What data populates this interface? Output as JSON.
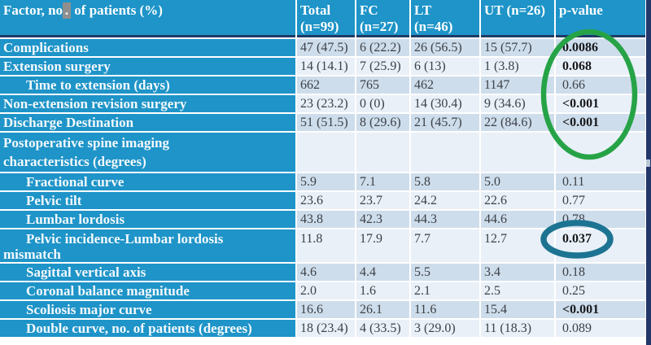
{
  "header": {
    "factor": {
      "prefix": "Factor, no",
      "selected": ".",
      "suffix": " of patients (%)"
    }
  },
  "table": {
    "columns": [
      "Total\n(n=99)",
      "FC\n(n=27)",
      "LT\n(n=46)",
      "UT (n=26)",
      "p-value"
    ],
    "rows": [
      {
        "factor": "Complications",
        "indent": false,
        "h": "single",
        "values": [
          "47 (47.5)",
          "6 (22.2)",
          "26 (56.5)",
          "15 (57.7)"
        ],
        "p": "0.0086",
        "p_bold": true
      },
      {
        "factor": "Extension surgery",
        "indent": false,
        "h": "single",
        "values": [
          "14 (14.1)",
          "7 (25.9)",
          "6 (13)",
          "1 (3.8)"
        ],
        "p": "0.068",
        "p_bold": true
      },
      {
        "factor": "Time to extension (days)",
        "indent": true,
        "h": "single",
        "values": [
          "662",
          "765",
          "462",
          "1147"
        ],
        "p": "0.66",
        "p_bold": false
      },
      {
        "factor": "Non-extension revision surgery",
        "indent": false,
        "h": "single",
        "values": [
          "23 (23.2)",
          "0 (0)",
          "14 (30.4)",
          "9 (34.6)"
        ],
        "p": "<0.001",
        "p_bold": true
      },
      {
        "factor": "Discharge Destination",
        "indent": false,
        "h": "single",
        "values": [
          "51 (51.5)",
          "8 (29.6)",
          "21 (45.7)",
          "22 (84.6)"
        ],
        "p": "<0.001",
        "p_bold": true
      },
      {
        "factor": "Postoperative spine imaging\ncharacteristics (degrees)",
        "indent": false,
        "h": "tall",
        "values": [
          "",
          "",
          "",
          ""
        ],
        "p": "",
        "p_bold": false
      },
      {
        "factor": "Fractional curve",
        "indent": true,
        "h": "single",
        "values": [
          "5.9",
          "7.1",
          "5.8",
          "5.0"
        ],
        "p": "0.11",
        "p_bold": false
      },
      {
        "factor": "Pelvic tilt",
        "indent": true,
        "h": "single",
        "values": [
          "23.6",
          "23.7",
          "24.2",
          "22.6"
        ],
        "p": "0.77",
        "p_bold": false
      },
      {
        "factor": "Lumbar lordosis",
        "indent": true,
        "h": "single",
        "values": [
          "43.8",
          "42.3",
          "44.3",
          "44.6"
        ],
        "p": "0.78",
        "p_bold": false
      },
      {
        "factor": "Pelvic incidence-Lumbar lordosis\nmismatch",
        "indent": true,
        "h": "med",
        "values": [
          "11.8",
          "17.9",
          "7.7",
          "12.7"
        ],
        "p": "0.037",
        "p_bold": true
      },
      {
        "factor": "Sagittal vertical axis",
        "indent": true,
        "h": "single",
        "values": [
          "4.6",
          "4.4",
          "5.5",
          "3.4"
        ],
        "p": "0.18",
        "p_bold": false
      },
      {
        "factor": "Coronal balance magnitude",
        "indent": true,
        "h": "single",
        "values": [
          "2.0",
          "1.6",
          "2.1",
          "2.5"
        ],
        "p": "0.25",
        "p_bold": false
      },
      {
        "factor": "Scoliosis major curve",
        "indent": true,
        "h": "single",
        "values": [
          "16.6",
          "26.1",
          "11.6",
          "15.4"
        ],
        "p": "<0.001",
        "p_bold": true
      },
      {
        "factor": "Double curve, no. of patients (degrees)",
        "indent": true,
        "h": "single",
        "values": [
          "18 (23.4)",
          "4 (33.5)",
          "3 (29.0)",
          "11 (18.3)"
        ],
        "p": "0.089",
        "p_bold": false
      }
    ]
  },
  "annotations": {
    "green_ellipse_circles": [
      "0.0086",
      "0.068",
      "0.66",
      "<0.001",
      "<0.001"
    ],
    "teal_ellipse_circles": "0.037"
  },
  "colors": {
    "header_blue": "#1E94C8",
    "row_dark": "#CEDDEB",
    "row_light": "#E9F0F8",
    "navy_border": "#1E3A66",
    "right_strip": "#24376B",
    "green_annotation": "#27A347",
    "teal_annotation": "#1D7492",
    "selection_gray": "#8F8F8F",
    "data_text": "#3C4148",
    "p_bold_text": "#17191C",
    "strip_notch": "#B9C6D6"
  }
}
